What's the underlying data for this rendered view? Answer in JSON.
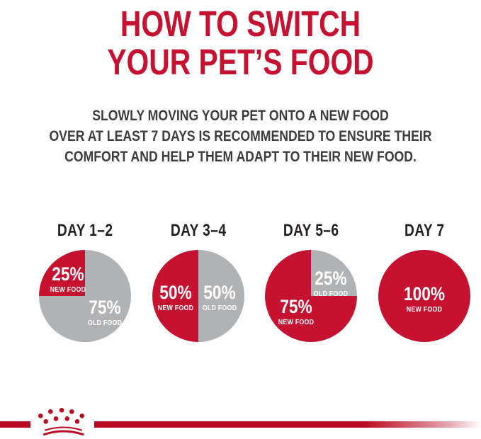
{
  "page": {
    "title": "HOW TO SWITCH\nYOUR PET’S FOOD",
    "subtitle": "SLOWLY MOVING YOUR PET ONTO A NEW FOOD\nOVER AT LEAST 7 DAYS IS RECOMMENDED TO ENSURE THEIR\nCOMFORT AND HELP THEM ADAPT TO THEIR NEW FOOD."
  },
  "colors": {
    "brand_red": "#c41230",
    "pie_gray": "#b1b2b4",
    "bar_red": "#b90b21",
    "text_dark": "#3d3d3d",
    "day_label": "#231f20",
    "label_white": "#ffffff"
  },
  "chart_data": [
    {
      "type": "pie",
      "title": "DAY 1–2",
      "start_deg": 270,
      "legend": "none",
      "slices": [
        {
          "label": "NEW FOOD",
          "value": 25,
          "value_label": "25%",
          "color_key": "brand_red",
          "label_pos": {
            "x": 31.5,
            "y": 32
          }
        },
        {
          "label": "OLD FOOD",
          "value": 75,
          "value_label": "75%",
          "color_key": "pie_gray",
          "label_pos": {
            "x": 71.5,
            "y": 67.5
          }
        }
      ]
    },
    {
      "type": "pie",
      "title": "DAY 3–4",
      "start_deg": 180,
      "legend": "none",
      "slices": [
        {
          "label": "NEW FOOD",
          "value": 50,
          "value_label": "50%",
          "color_key": "brand_red",
          "label_pos": {
            "x": 25.5,
            "y": 51.5
          }
        },
        {
          "label": "OLD FOOD",
          "value": 50,
          "value_label": "50%",
          "color_key": "pie_gray",
          "label_pos": {
            "x": 73,
            "y": 51.5
          }
        }
      ]
    },
    {
      "type": "pie",
      "title": "DAY 5–6",
      "start_deg": 0,
      "legend": "none",
      "slices": [
        {
          "label": "OLD FOOD",
          "value": 25,
          "value_label": "25%",
          "color_key": "pie_gray",
          "label_pos": {
            "x": 71.5,
            "y": 36
          }
        },
        {
          "label": "NEW FOOD",
          "value": 75,
          "value_label": "75%",
          "color_key": "brand_red",
          "label_pos": {
            "x": 33.8,
            "y": 67
          }
        }
      ]
    },
    {
      "type": "pie",
      "title": "DAY 7",
      "start_deg": 0,
      "legend": "none",
      "slices": [
        {
          "label": "NEW FOOD",
          "value": 100,
          "value_label": "100%",
          "color_key": "brand_red",
          "label_pos": {
            "x": 50,
            "y": 53
          }
        }
      ]
    }
  ],
  "footer": {
    "logo": "royal-canin-crown"
  }
}
